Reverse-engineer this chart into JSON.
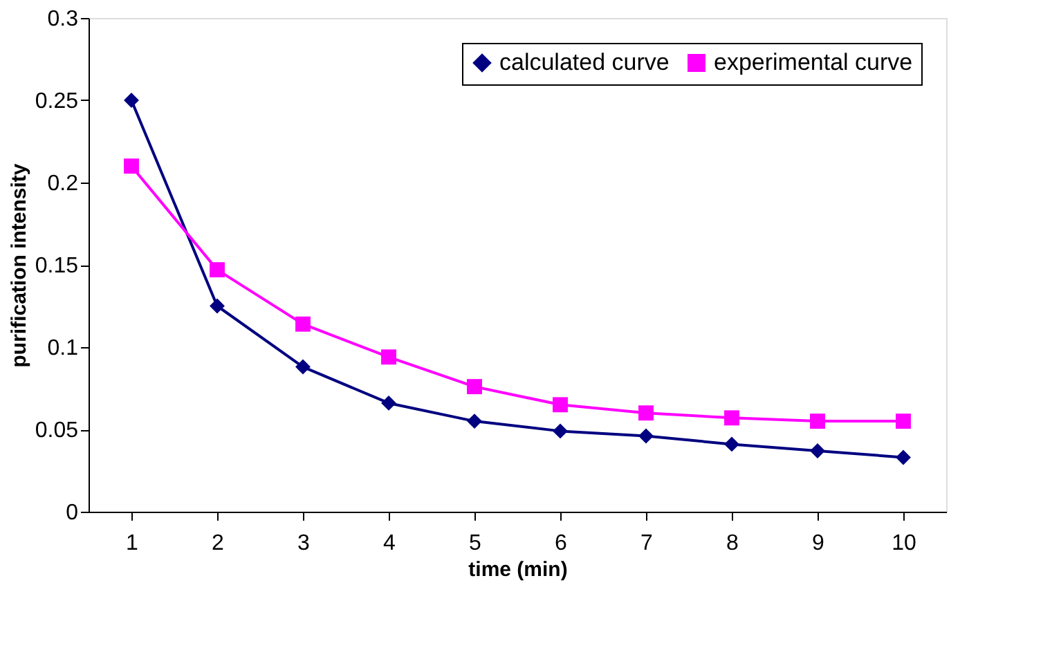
{
  "chart_data": {
    "type": "line",
    "xlabel": "time (min)",
    "ylabel": "purification intensity",
    "categories": [
      "1",
      "2",
      "3",
      "4",
      "5",
      "6",
      "7",
      "8",
      "9",
      "10"
    ],
    "series": [
      {
        "name": "calculated curve",
        "color": "#000080",
        "marker": "diamond",
        "values": [
          0.25,
          0.125,
          0.088,
          0.066,
          0.055,
          0.049,
          0.046,
          0.041,
          0.037,
          0.033
        ]
      },
      {
        "name": "experimental curve",
        "color": "#ff00ff",
        "marker": "square",
        "values": [
          0.21,
          0.147,
          0.114,
          0.094,
          0.076,
          0.065,
          0.06,
          0.057,
          0.055,
          0.055
        ]
      }
    ],
    "ylim": [
      0,
      0.3
    ],
    "yticks": [
      0,
      0.05,
      0.1,
      0.15,
      0.2,
      0.25,
      0.3
    ],
    "grid": false,
    "legend": "top right",
    "line_style": "solid"
  }
}
